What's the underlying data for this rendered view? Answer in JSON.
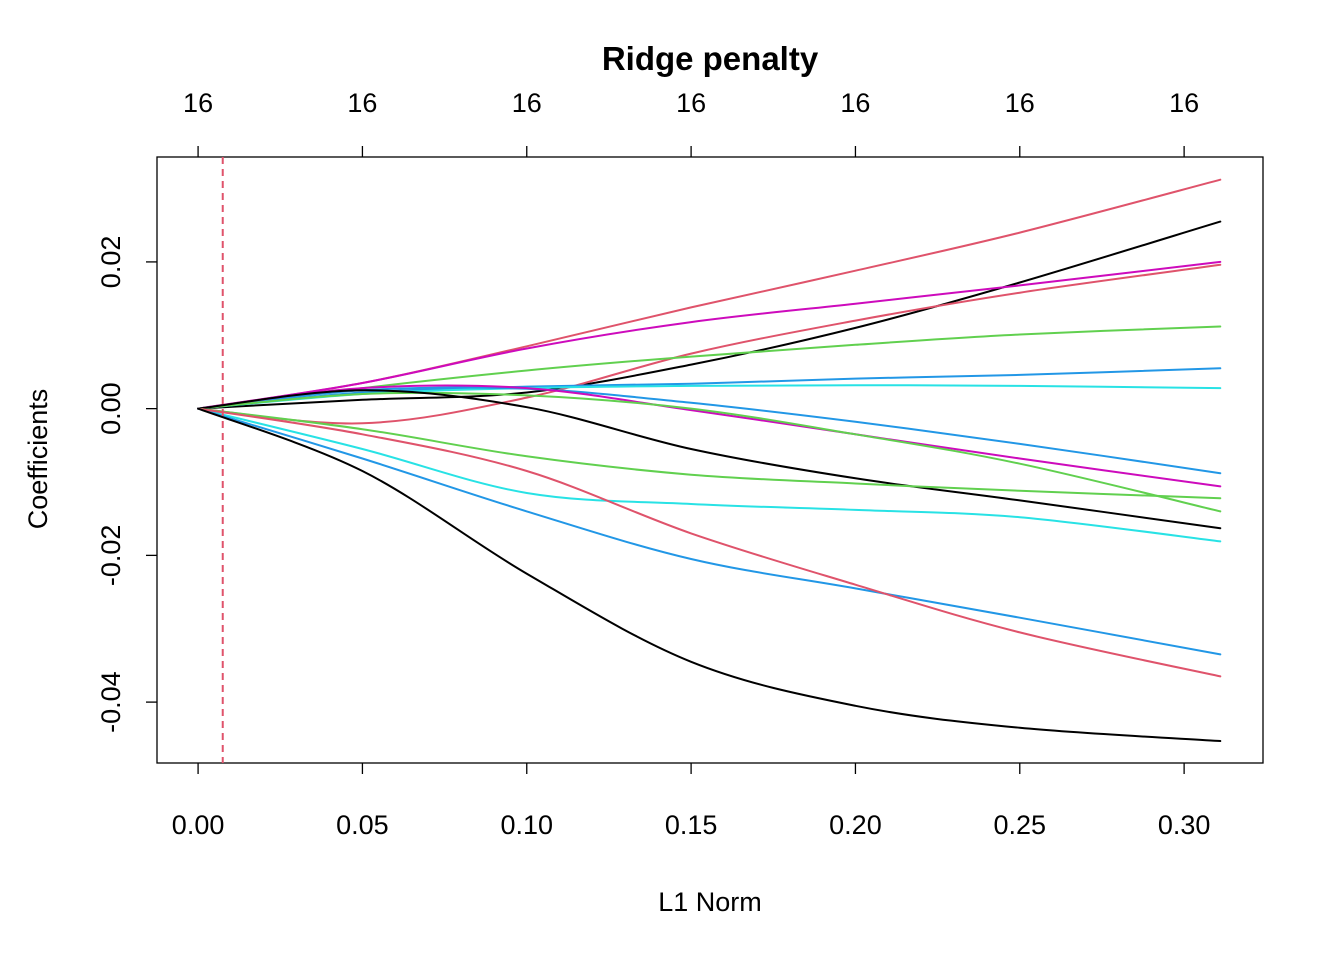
{
  "chart_data": {
    "type": "line",
    "title": "Ridge penalty",
    "xlabel": "L1 Norm",
    "ylabel": "Coefficients",
    "xlim": [
      -0.0125,
      0.324
    ],
    "ylim": [
      -0.0483,
      0.0343
    ],
    "x_ticks": [
      0.0,
      0.05,
      0.1,
      0.15,
      0.2,
      0.25,
      0.3
    ],
    "x_tick_labels": [
      "0.00",
      "0.05",
      "0.10",
      "0.15",
      "0.20",
      "0.25",
      "0.30"
    ],
    "y_ticks": [
      0.02,
      0.0,
      -0.02,
      -0.04
    ],
    "y_tick_labels": [
      "0.02",
      "0.00",
      "-0.02",
      "-0.04"
    ],
    "top_axis_labels": [
      "16",
      "16",
      "16",
      "16",
      "16",
      "16",
      "16"
    ],
    "reference_line": {
      "x": 0.0075,
      "color": "#DF536B",
      "style": "dashed"
    },
    "x": [
      0,
      0.05,
      0.1,
      0.15,
      0.2,
      0.25,
      0.311
    ],
    "series": [
      {
        "color": "#DF536B",
        "values": [
          0,
          0.0035,
          0.0085,
          0.0138,
          0.0188,
          0.024,
          0.0312
        ]
      },
      {
        "color": "#000000",
        "values": [
          0,
          0.0012,
          0.0022,
          0.006,
          0.011,
          0.0172,
          0.0255
        ]
      },
      {
        "color": "#CD0BBC",
        "values": [
          0,
          0.0035,
          0.0082,
          0.0118,
          0.0143,
          0.0168,
          0.02
        ]
      },
      {
        "color": "#DF536B",
        "values": [
          0,
          -0.002,
          0.0015,
          0.0075,
          0.012,
          0.0158,
          0.0196
        ]
      },
      {
        "color": "#61D04F",
        "values": [
          0,
          0.0028,
          0.0052,
          0.0071,
          0.0087,
          0.0101,
          0.0112
        ]
      },
      {
        "color": "#2297E6",
        "values": [
          0,
          0.0022,
          0.003,
          0.0034,
          0.0041,
          0.0046,
          0.0055
        ]
      },
      {
        "color": "#28E2E5",
        "values": [
          0,
          0.002,
          0.0028,
          0.0031,
          0.0032,
          0.0031,
          0.0028
        ]
      },
      {
        "color": "#2297E6",
        "values": [
          0,
          0.0025,
          0.0027,
          0.0008,
          -0.0018,
          -0.0048,
          -0.0088
        ]
      },
      {
        "color": "#CD0BBC",
        "values": [
          0,
          0.0028,
          0.0028,
          -0.0002,
          -0.0035,
          -0.0068,
          -0.0106
        ]
      },
      {
        "color": "#61D04F",
        "values": [
          0,
          0.002,
          0.0018,
          0.0,
          -0.0035,
          -0.0075,
          -0.014
        ]
      },
      {
        "color": "#000000",
        "values": [
          0,
          0.0025,
          0.0002,
          -0.0055,
          -0.0095,
          -0.0125,
          -0.0163
        ]
      },
      {
        "color": "#61D04F",
        "values": [
          0,
          -0.0028,
          -0.0065,
          -0.009,
          -0.0102,
          -0.0112,
          -0.0122
        ]
      },
      {
        "color": "#28E2E5",
        "values": [
          0,
          -0.0055,
          -0.0115,
          -0.013,
          -0.0138,
          -0.0148,
          -0.0181
        ]
      },
      {
        "color": "#2297E6",
        "values": [
          0,
          -0.0068,
          -0.014,
          -0.0205,
          -0.0245,
          -0.0285,
          -0.0335
        ]
      },
      {
        "color": "#DF536B",
        "values": [
          0,
          -0.0035,
          -0.0085,
          -0.017,
          -0.024,
          -0.0305,
          -0.0365
        ]
      },
      {
        "color": "#000000",
        "values": [
          0,
          -0.0085,
          -0.0225,
          -0.0345,
          -0.0405,
          -0.0435,
          -0.0453
        ]
      }
    ]
  }
}
